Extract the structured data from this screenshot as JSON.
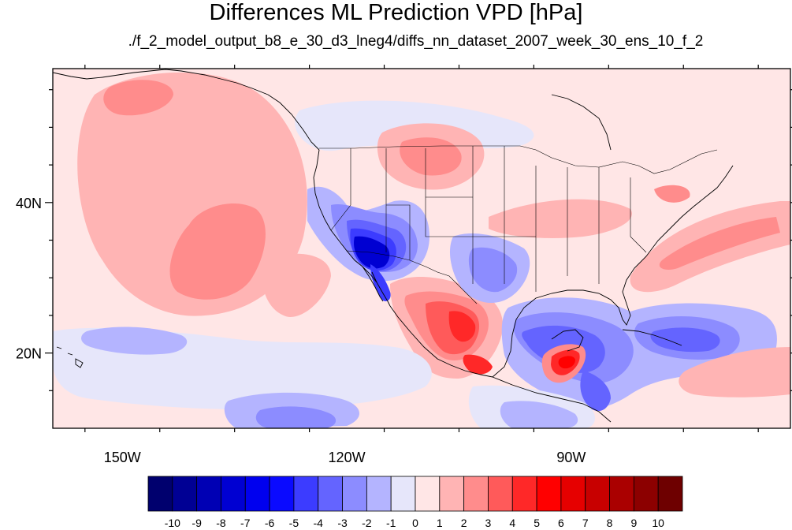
{
  "title": "Differences ML Prediction VPD [hPa]",
  "subtitle": "./f_2_model_output_b8_e_30_d3_lneg4/diffs_nn_dataset_2007_week_30_ens_10_f_2",
  "map": {
    "projection": "cylindrical-equidistant",
    "lon_range": [
      -159.3,
      -60.7
    ],
    "lat_range": [
      10.0,
      57.8
    ],
    "x_ticks": [
      {
        "value": -150,
        "label": "150W"
      },
      {
        "value": -120,
        "label": "120W"
      },
      {
        "value": -90,
        "label": "90W"
      }
    ],
    "y_ticks": [
      {
        "value": 40,
        "label": "40N"
      },
      {
        "value": 20,
        "label": "20N"
      }
    ],
    "background_color": "#ffe6e6",
    "coastline_color": "#000000"
  },
  "colorbar": {
    "tick_labels": [
      "-10",
      "-9",
      "-8",
      "-7",
      "-6",
      "-5",
      "-4",
      "-3",
      "-2",
      "-1",
      "0",
      "1",
      "2",
      "3",
      "4",
      "5",
      "6",
      "7",
      "8",
      "9",
      "10"
    ],
    "colors": [
      "#00006e",
      "#000094",
      "#0000b4",
      "#0000d2",
      "#0000ef",
      "#0a0aff",
      "#3c3cff",
      "#6464ff",
      "#8c8cff",
      "#b4b4ff",
      "#e6e6fa",
      "#ffe6e6",
      "#ffb4b4",
      "#ff8c8c",
      "#ff5a5a",
      "#ff2828",
      "#ff0000",
      "#e60000",
      "#c80000",
      "#aa0000",
      "#8c0000",
      "#6e0000"
    ]
  }
}
